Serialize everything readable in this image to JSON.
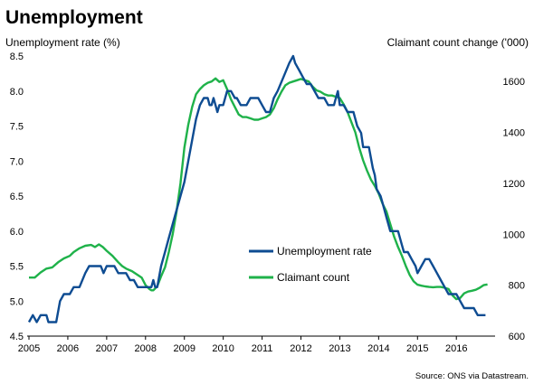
{
  "chart_data": {
    "type": "line",
    "title": "Unemployment",
    "source": "Source: ONS via Datastream.",
    "y_left_label": "Unemployment rate (%)",
    "y_right_label": "Claimant count change ('000)",
    "x_ticks": [
      "2005",
      "2006",
      "2007",
      "2008",
      "2009",
      "2010",
      "2011",
      "2012",
      "2013",
      "2014",
      "2015",
      "2016"
    ],
    "y_left_ticks": [
      "4.5",
      "5.0",
      "5.5",
      "6.0",
      "6.5",
      "7.0",
      "7.5",
      "8.0",
      "8.5"
    ],
    "y_right_ticks": [
      "600",
      "800",
      "1000",
      "1200",
      "1400",
      "1600"
    ],
    "x_range": [
      2005.0,
      2016.95
    ],
    "y_left_range": [
      4.5,
      8.5
    ],
    "y_right_range": [
      600,
      1700
    ],
    "grid": false,
    "legend_position": "center-right",
    "colors": {
      "unemployment": "#0e4c92",
      "claimant": "#1fb24a"
    },
    "series": [
      {
        "name": "Unemployment rate",
        "axis": "left",
        "points": [
          [
            2005.0,
            4.7
          ],
          [
            2005.1,
            4.8
          ],
          [
            2005.2,
            4.7
          ],
          [
            2005.3,
            4.8
          ],
          [
            2005.45,
            4.8
          ],
          [
            2005.5,
            4.7
          ],
          [
            2005.7,
            4.7
          ],
          [
            2005.8,
            5.0
          ],
          [
            2005.9,
            5.1
          ],
          [
            2006.05,
            5.1
          ],
          [
            2006.15,
            5.2
          ],
          [
            2006.3,
            5.2
          ],
          [
            2006.45,
            5.4
          ],
          [
            2006.55,
            5.5
          ],
          [
            2006.85,
            5.5
          ],
          [
            2006.92,
            5.4
          ],
          [
            2007.0,
            5.5
          ],
          [
            2007.2,
            5.5
          ],
          [
            2007.3,
            5.4
          ],
          [
            2007.5,
            5.4
          ],
          [
            2007.6,
            5.3
          ],
          [
            2007.7,
            5.3
          ],
          [
            2007.8,
            5.2
          ],
          [
            2008.0,
            5.2
          ],
          [
            2008.15,
            5.2
          ],
          [
            2008.2,
            5.3
          ],
          [
            2008.25,
            5.2
          ],
          [
            2008.3,
            5.2
          ],
          [
            2008.4,
            5.5
          ],
          [
            2008.5,
            5.7
          ],
          [
            2008.6,
            5.9
          ],
          [
            2008.7,
            6.1
          ],
          [
            2008.8,
            6.3
          ],
          [
            2008.9,
            6.5
          ],
          [
            2009.0,
            6.7
          ],
          [
            2009.1,
            7.0
          ],
          [
            2009.2,
            7.3
          ],
          [
            2009.3,
            7.6
          ],
          [
            2009.4,
            7.8
          ],
          [
            2009.5,
            7.9
          ],
          [
            2009.6,
            7.9
          ],
          [
            2009.65,
            7.8
          ],
          [
            2009.7,
            7.8
          ],
          [
            2009.75,
            7.9
          ],
          [
            2009.8,
            7.8
          ],
          [
            2009.85,
            7.7
          ],
          [
            2009.9,
            7.8
          ],
          [
            2010.0,
            7.8
          ],
          [
            2010.1,
            8.0
          ],
          [
            2010.2,
            8.0
          ],
          [
            2010.3,
            7.9
          ],
          [
            2010.35,
            7.9
          ],
          [
            2010.45,
            7.8
          ],
          [
            2010.6,
            7.8
          ],
          [
            2010.7,
            7.9
          ],
          [
            2010.9,
            7.9
          ],
          [
            2011.0,
            7.8
          ],
          [
            2011.1,
            7.7
          ],
          [
            2011.2,
            7.7
          ],
          [
            2011.3,
            7.9
          ],
          [
            2011.4,
            8.0
          ],
          [
            2011.55,
            8.2
          ],
          [
            2011.7,
            8.4
          ],
          [
            2011.8,
            8.5
          ],
          [
            2011.85,
            8.4
          ],
          [
            2011.95,
            8.3
          ],
          [
            2012.05,
            8.2
          ],
          [
            2012.15,
            8.1
          ],
          [
            2012.25,
            8.1
          ],
          [
            2012.35,
            8.0
          ],
          [
            2012.45,
            7.9
          ],
          [
            2012.6,
            7.9
          ],
          [
            2012.7,
            7.8
          ],
          [
            2012.85,
            7.8
          ],
          [
            2012.9,
            7.9
          ],
          [
            2012.95,
            8.0
          ],
          [
            2013.0,
            7.8
          ],
          [
            2013.1,
            7.8
          ],
          [
            2013.2,
            7.7
          ],
          [
            2013.35,
            7.7
          ],
          [
            2013.45,
            7.5
          ],
          [
            2013.55,
            7.4
          ],
          [
            2013.6,
            7.2
          ],
          [
            2013.75,
            7.2
          ],
          [
            2013.85,
            6.9
          ],
          [
            2013.9,
            6.8
          ],
          [
            2013.95,
            6.6
          ],
          [
            2014.05,
            6.5
          ],
          [
            2014.1,
            6.4
          ],
          [
            2014.2,
            6.2
          ],
          [
            2014.3,
            6.0
          ],
          [
            2014.5,
            6.0
          ],
          [
            2014.6,
            5.8
          ],
          [
            2014.65,
            5.7
          ],
          [
            2014.75,
            5.7
          ],
          [
            2014.85,
            5.6
          ],
          [
            2014.95,
            5.5
          ],
          [
            2015.0,
            5.4
          ],
          [
            2015.1,
            5.5
          ],
          [
            2015.2,
            5.6
          ],
          [
            2015.3,
            5.6
          ],
          [
            2015.4,
            5.5
          ],
          [
            2015.5,
            5.4
          ],
          [
            2015.6,
            5.3
          ],
          [
            2015.7,
            5.2
          ],
          [
            2015.8,
            5.1
          ],
          [
            2015.9,
            5.1
          ],
          [
            2016.0,
            5.1
          ],
          [
            2016.1,
            5.0
          ],
          [
            2016.2,
            4.9
          ],
          [
            2016.3,
            4.9
          ],
          [
            2016.45,
            4.9
          ],
          [
            2016.55,
            4.8
          ],
          [
            2016.75,
            4.8
          ]
        ]
      },
      {
        "name": "Claimant count",
        "axis": "right",
        "points": [
          [
            2005.0,
            830
          ],
          [
            2005.15,
            830
          ],
          [
            2005.3,
            850
          ],
          [
            2005.45,
            865
          ],
          [
            2005.6,
            870
          ],
          [
            2005.75,
            890
          ],
          [
            2005.9,
            905
          ],
          [
            2006.05,
            915
          ],
          [
            2006.15,
            930
          ],
          [
            2006.3,
            945
          ],
          [
            2006.45,
            955
          ],
          [
            2006.6,
            958
          ],
          [
            2006.7,
            950
          ],
          [
            2006.8,
            960
          ],
          [
            2006.9,
            950
          ],
          [
            2007.0,
            935
          ],
          [
            2007.15,
            915
          ],
          [
            2007.3,
            890
          ],
          [
            2007.4,
            875
          ],
          [
            2007.5,
            865
          ],
          [
            2007.65,
            855
          ],
          [
            2007.8,
            840
          ],
          [
            2007.9,
            830
          ],
          [
            2008.0,
            800
          ],
          [
            2008.1,
            785
          ],
          [
            2008.15,
            780
          ],
          [
            2008.2,
            780
          ],
          [
            2008.3,
            795
          ],
          [
            2008.4,
            835
          ],
          [
            2008.5,
            870
          ],
          [
            2008.6,
            930
          ],
          [
            2008.7,
            1000
          ],
          [
            2008.8,
            1090
          ],
          [
            2008.9,
            1200
          ],
          [
            2009.0,
            1340
          ],
          [
            2009.1,
            1430
          ],
          [
            2009.2,
            1500
          ],
          [
            2009.3,
            1550
          ],
          [
            2009.4,
            1570
          ],
          [
            2009.5,
            1585
          ],
          [
            2009.6,
            1595
          ],
          [
            2009.7,
            1600
          ],
          [
            2009.8,
            1612
          ],
          [
            2009.9,
            1598
          ],
          [
            2010.0,
            1605
          ],
          [
            2010.1,
            1570
          ],
          [
            2010.2,
            1530
          ],
          [
            2010.3,
            1500
          ],
          [
            2010.4,
            1470
          ],
          [
            2010.5,
            1460
          ],
          [
            2010.6,
            1460
          ],
          [
            2010.7,
            1455
          ],
          [
            2010.8,
            1450
          ],
          [
            2010.9,
            1450
          ],
          [
            2011.0,
            1455
          ],
          [
            2011.1,
            1460
          ],
          [
            2011.2,
            1470
          ],
          [
            2011.3,
            1495
          ],
          [
            2011.4,
            1530
          ],
          [
            2011.5,
            1560
          ],
          [
            2011.6,
            1585
          ],
          [
            2011.7,
            1595
          ],
          [
            2011.8,
            1600
          ],
          [
            2011.9,
            1605
          ],
          [
            2012.0,
            1610
          ],
          [
            2012.1,
            1605
          ],
          [
            2012.2,
            1600
          ],
          [
            2012.3,
            1580
          ],
          [
            2012.4,
            1565
          ],
          [
            2012.5,
            1560
          ],
          [
            2012.6,
            1550
          ],
          [
            2012.7,
            1545
          ],
          [
            2012.8,
            1545
          ],
          [
            2012.9,
            1540
          ],
          [
            2013.0,
            1535
          ],
          [
            2013.1,
            1510
          ],
          [
            2013.2,
            1480
          ],
          [
            2013.3,
            1440
          ],
          [
            2013.4,
            1400
          ],
          [
            2013.5,
            1340
          ],
          [
            2013.6,
            1290
          ],
          [
            2013.7,
            1250
          ],
          [
            2013.8,
            1215
          ],
          [
            2013.9,
            1190
          ],
          [
            2014.0,
            1160
          ],
          [
            2014.1,
            1120
          ],
          [
            2014.2,
            1090
          ],
          [
            2014.3,
            1040
          ],
          [
            2014.4,
            990
          ],
          [
            2014.5,
            950
          ],
          [
            2014.6,
            915
          ],
          [
            2014.7,
            875
          ],
          [
            2014.8,
            840
          ],
          [
            2014.9,
            815
          ],
          [
            2015.0,
            802
          ],
          [
            2015.1,
            798
          ],
          [
            2015.2,
            795
          ],
          [
            2015.3,
            793
          ],
          [
            2015.4,
            792
          ],
          [
            2015.5,
            793
          ],
          [
            2015.6,
            793
          ],
          [
            2015.7,
            790
          ],
          [
            2015.8,
            785
          ],
          [
            2015.9,
            760
          ],
          [
            2016.0,
            745
          ],
          [
            2016.1,
            750
          ],
          [
            2016.2,
            768
          ],
          [
            2016.3,
            775
          ],
          [
            2016.4,
            778
          ],
          [
            2016.5,
            782
          ],
          [
            2016.6,
            790
          ],
          [
            2016.7,
            800
          ],
          [
            2016.8,
            803
          ]
        ]
      }
    ]
  }
}
